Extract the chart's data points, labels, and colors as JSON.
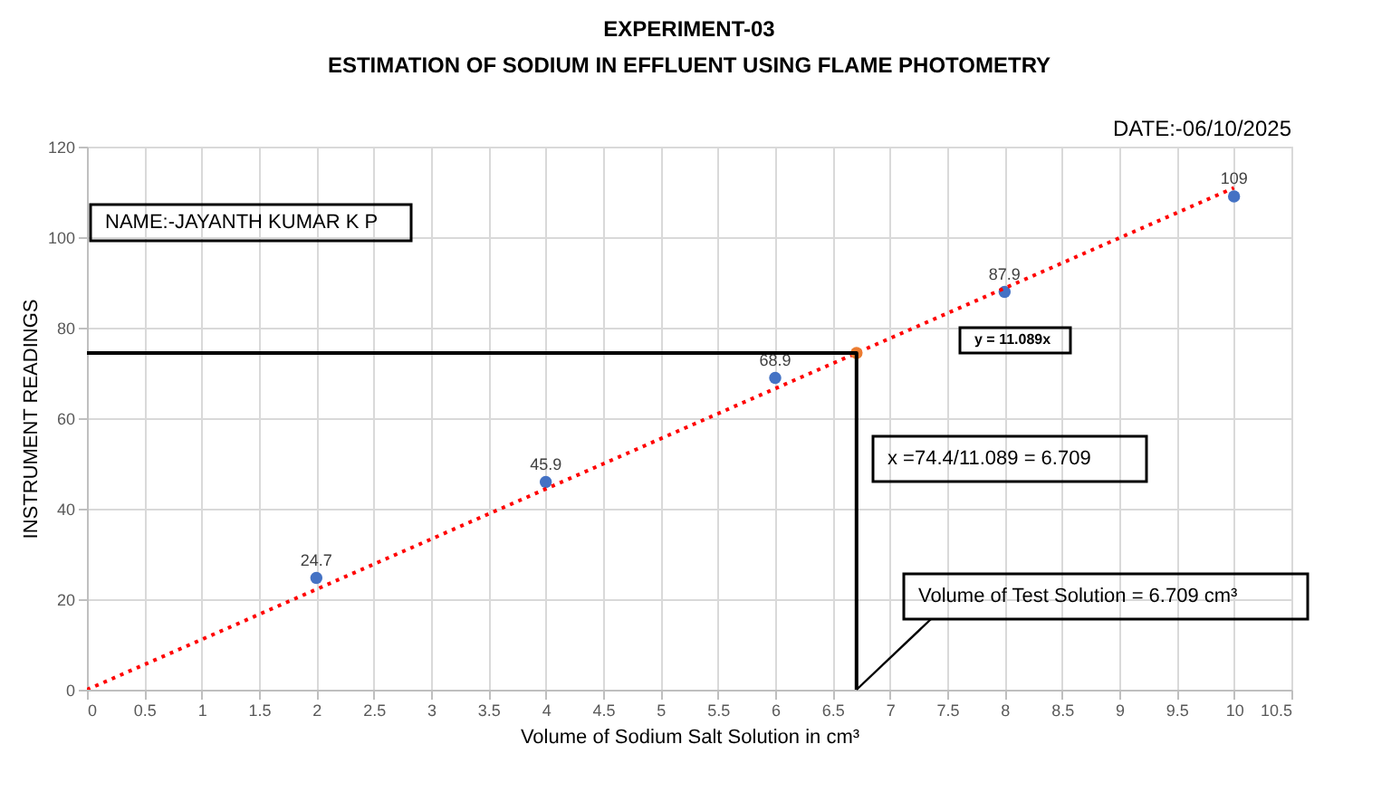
{
  "chart_data": {
    "type": "scatter",
    "title": "EXPERIMENT-03",
    "subtitle": "ESTIMATION OF SODIUM IN EFFLUENT USING FLAME PHOTOMETRY",
    "xlabel": "Volume of Sodium Salt Solution in cm³",
    "ylabel": "INSTRUMENT READINGS",
    "xlim": [
      0,
      10.5
    ],
    "xticks": [
      0,
      0.5,
      1,
      1.5,
      2,
      2.5,
      3,
      3.5,
      4,
      4.5,
      5,
      5.5,
      6,
      6.5,
      7,
      7.5,
      8,
      8.5,
      9,
      9.5,
      10,
      10.5
    ],
    "ylim": [
      0,
      120
    ],
    "yticks": [
      0,
      20,
      40,
      60,
      80,
      100,
      120
    ],
    "grid": true,
    "series": [
      {
        "color": "#4472c4",
        "marker": "circle",
        "x": [
          2,
          4,
          6,
          8,
          10
        ],
        "values": [
          24.7,
          45.9,
          68.9,
          87.9,
          109
        ],
        "value_labels": [
          "24.7",
          "45.9",
          "68.9",
          "87.9",
          "109"
        ]
      },
      {
        "type": "line",
        "color": "#ff0000",
        "marker": "none",
        "line_style": "dotted",
        "x": [
          0,
          10
        ],
        "values": [
          0,
          110.9
        ]
      },
      {
        "color": "#ed7d31",
        "marker": "circle",
        "x": [
          6.709
        ],
        "values": [
          74.4
        ]
      },
      {
        "type": "line",
        "color": "#000000",
        "marker": "none",
        "line_style": "solid",
        "x": [
          0,
          6.709,
          6.709
        ],
        "values": [
          74.4,
          74.4,
          0
        ]
      }
    ],
    "annotations": [
      "DATE:-06/10/2025",
      "NAME:-JAYANTH KUMAR K P",
      "y = 11.089x",
      "x =74.4/11.089 = 6.709",
      {
        "text": "Volume of Test Solution = 6.709 cm³",
        "x": 6.709,
        "y": 0
      }
    ]
  }
}
